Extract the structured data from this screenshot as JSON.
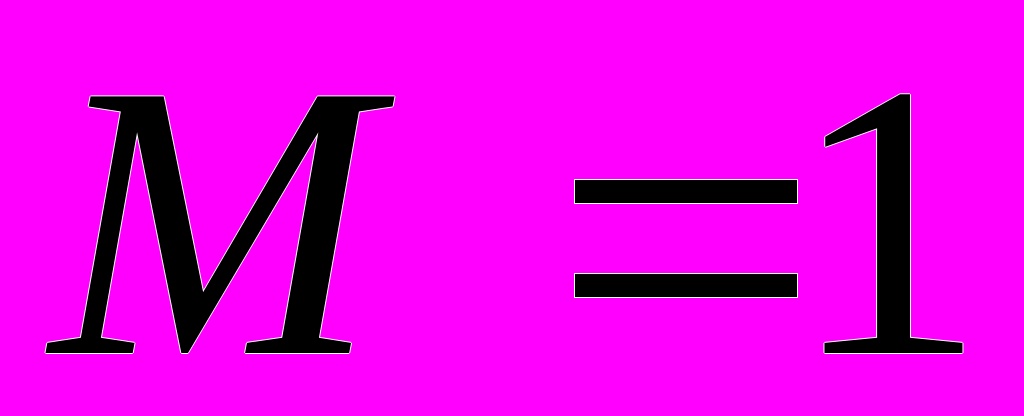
{
  "equation": {
    "lhs": "M",
    "equals": "=",
    "rhs": "1",
    "full_text": "M =1"
  },
  "colors": {
    "background": "#ff00ff",
    "ink": "#000000",
    "edge_fringe": "#ffffff"
  }
}
